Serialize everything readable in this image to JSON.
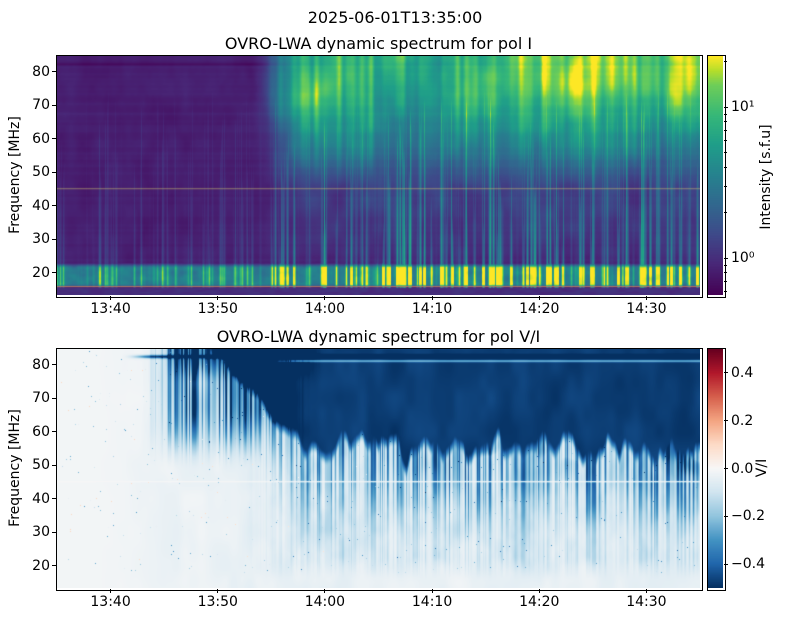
{
  "figure": {
    "suptitle": "2025-06-01T13:35:00",
    "background": "#ffffff"
  },
  "chart_data": [
    {
      "type": "heatmap",
      "title": "OVRO-LWA dynamic spectrum for pol I",
      "xlabel": "",
      "ylabel": "Frequency [MHz]",
      "x_range_time": [
        "13:35",
        "14:35"
      ],
      "x_ticks": [
        "13:40",
        "13:50",
        "14:00",
        "14:10",
        "14:20",
        "14:30"
      ],
      "y_range_mhz": [
        13.3,
        84.7
      ],
      "y_ticks": [
        20,
        30,
        40,
        50,
        60,
        70,
        80
      ],
      "grid": false,
      "colormap": "viridis",
      "color_scale": "log",
      "color_limits_sfu": [
        0.57,
        21.8
      ],
      "colorbar": {
        "label": "Intensity [s.f.u]",
        "major_ticks": [
          {
            "value": 10,
            "label": "10¹"
          },
          {
            "value": 1,
            "label": "10⁰"
          }
        ],
        "minor_tick_values": [
          0.6,
          0.7,
          0.8,
          0.9,
          2,
          3,
          4,
          5,
          6,
          7,
          8,
          9,
          20
        ]
      },
      "features": {
        "quiet_low_intensity_background_before": "13:55",
        "broadband_emission_onset": "13:56",
        "bright_emission_band_mhz": [
          55,
          85
        ],
        "brightest_region": "yellow patches 70-85 MHz, strongest 14:00-14:35",
        "low_band_enhancement_mhz": [
          16,
          22
        ],
        "horizontal_rfi_lines_mhz": [
          45,
          15.8
        ],
        "vertical_burst_streaks": "numerous narrow type-III-like streaks 13:55-14:35 spanning ~16-65 MHz, brightest near 16-22 MHz"
      }
    },
    {
      "type": "heatmap",
      "title": "OVRO-LWA dynamic spectrum for pol V/I",
      "xlabel": "",
      "ylabel": "Frequency [MHz]",
      "x_range_time": [
        "13:35",
        "14:35"
      ],
      "x_ticks": [
        "13:40",
        "13:50",
        "14:00",
        "14:10",
        "14:20",
        "14:30"
      ],
      "y_range_mhz": [
        13.3,
        84.7
      ],
      "y_ticks": [
        20,
        30,
        40,
        50,
        60,
        70,
        80
      ],
      "grid": false,
      "colormap": "RdBu",
      "color_scale": "linear",
      "color_limits": [
        -0.5,
        0.5
      ],
      "colorbar": {
        "label": "V/I",
        "major_ticks": [
          {
            "value": 0.4,
            "label": "0.4"
          },
          {
            "value": 0.2,
            "label": "0.2"
          },
          {
            "value": 0.0,
            "label": "0.0"
          },
          {
            "value": -0.2,
            "label": "−0.2"
          },
          {
            "value": -0.4,
            "label": "−0.4"
          }
        ],
        "minor_tick_values": []
      },
      "features": {
        "strong_negative_polarization": "V/I ~ -0.45 (dark navy) above ~56 MHz after 13:56; boundary descends from ~85 MHz at 13:47 to ~56 MHz by 14:00",
        "near_zero_region": "V/I ~ 0 (white) below ~50 MHz and everywhere before 13:45",
        "early_streaks": "faint blue vertical wisps 55-85 MHz between 13:44 and 13:56",
        "horizontal_lines_mhz": [
          82.4,
          45
        ],
        "texture": "light-blue vertical streaks and sparse dark speckles below the dark boundary"
      }
    }
  ],
  "render_params": {
    "seed": 7
  }
}
